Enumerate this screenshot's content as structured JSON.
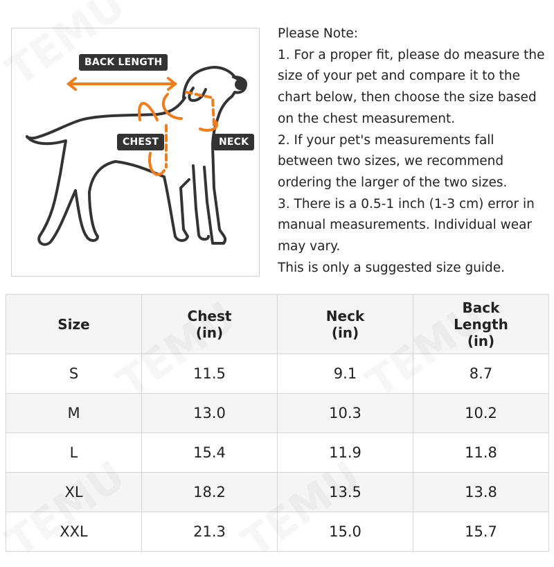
{
  "diagram": {
    "labels": {
      "back_length": "BACK LENGTH",
      "chest": "CHEST",
      "neck": "NECK"
    },
    "colors": {
      "accent": "#f07d1a",
      "outline": "#333333"
    }
  },
  "note": {
    "lines": [
      "Please Note:",
      "1. For a proper fit, please do measure the size of your pet and compare it to the chart below, then choose the size based on the chest measurement.",
      "2. If your pet's measurements fall between two sizes, we recommend ordering the larger of the two sizes.",
      "3. There is a 0.5-1 inch (1-3 cm) error in manual measurements. Individual wear may vary.",
      "This is only a suggested size guide."
    ]
  },
  "table": {
    "headers": [
      "Size",
      "Chest\n(in)",
      "Neck\n(in)",
      "Back\nLength\n(in)"
    ],
    "rows": [
      [
        "S",
        "11.5",
        "9.1",
        "8.7"
      ],
      [
        "M",
        "13.0",
        "10.3",
        "10.2"
      ],
      [
        "L",
        "15.4",
        "11.9",
        "11.8"
      ],
      [
        "XL",
        "18.2",
        "13.5",
        "13.8"
      ],
      [
        "XXL",
        "21.3",
        "15.0",
        "15.7"
      ]
    ]
  },
  "watermark": "TEMU"
}
